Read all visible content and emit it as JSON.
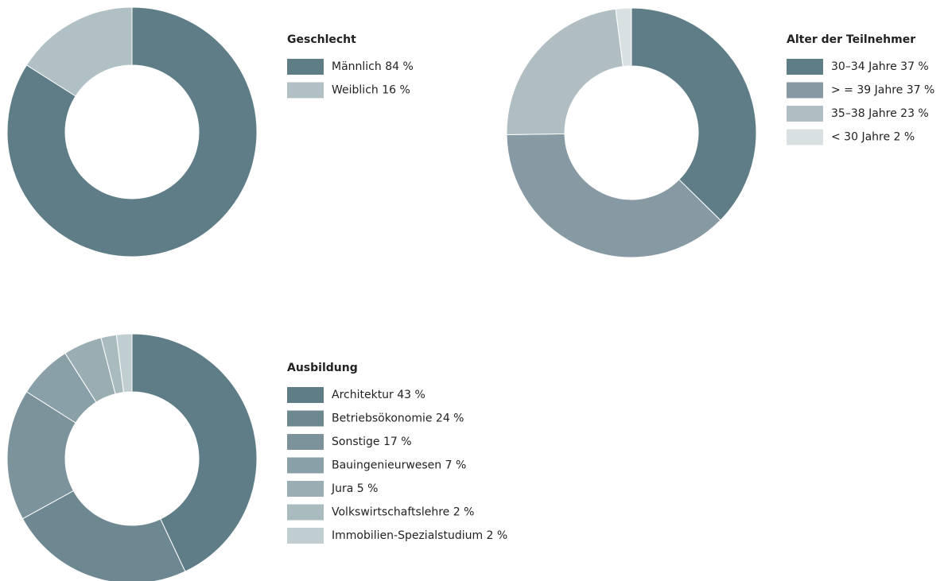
{
  "chart_data": [
    {
      "type": "donut",
      "title": "Geschlecht",
      "categories": [
        "Männlich 84 %",
        "Weiblich 16 %"
      ],
      "values": [
        84,
        16
      ],
      "colors": [
        "#5f7d87",
        "#b0c0c5"
      ]
    },
    {
      "type": "donut",
      "title": "Alter der Teilnehmer",
      "categories": [
        "30–34 Jahre 37 %",
        "> = 39 Jahre 37 %",
        "35–38 Jahre 23 %",
        "< 30 Jahre 2 %"
      ],
      "values": [
        37,
        37,
        23,
        2
      ],
      "colors": [
        "#5f7d87",
        "#8799a2",
        "#b0bec3",
        "#d9e0e2"
      ]
    },
    {
      "type": "donut",
      "title": "Ausbildung",
      "categories": [
        "Architektur 43 %",
        "Betriebsökonomie 24 %",
        "Sonstige 17 %",
        "Bauingenieurwesen 7 %",
        "Jura 5 %",
        "Volkswirtschaftslehre 2 %",
        "Immobilien-Spezialstudium 2 %"
      ],
      "values": [
        43,
        24,
        17,
        7,
        5,
        2,
        2
      ],
      "colors": [
        "#5f7d87",
        "#6d8891",
        "#7c939c",
        "#8aa0a8",
        "#9aadb3",
        "#aabbc0",
        "#c0cdd1"
      ]
    }
  ]
}
